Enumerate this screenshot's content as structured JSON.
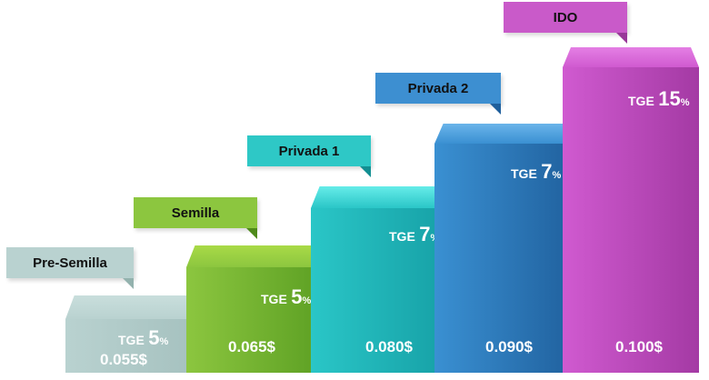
{
  "stages": [
    {
      "name": "Pre-Semilla",
      "tge_label": "TGE",
      "tge_value": "5",
      "tge_unit": "%",
      "price": "0.055$",
      "colors": {
        "top": "#c9dedc",
        "front_a": "#b9d2d0",
        "front_b": "#a3bfbd",
        "tag": "#b9d2d0",
        "tail": "#93b2ae"
      }
    },
    {
      "name": "Semilla",
      "tge_label": "TGE",
      "tge_value": "5",
      "tge_unit": "%",
      "price": "0.065$",
      "colors": {
        "top": "#a9da47",
        "front_a": "#8cc63f",
        "front_b": "#5a9e22",
        "tag": "#8cc63f",
        "tail": "#4f8a1a"
      }
    },
    {
      "name": "Privada 1",
      "tge_label": "TGE",
      "tge_value": "7",
      "tge_unit": "%",
      "price": "0.080$",
      "colors": {
        "top": "#66ece9",
        "front_a": "#2ac6c7",
        "front_b": "#159ea4",
        "tag": "#2ec8c6",
        "tail": "#128f92"
      }
    },
    {
      "name": "Privada 2",
      "tge_label": "TGE",
      "tge_value": "7",
      "tge_unit": "%",
      "price": "0.090$",
      "colors": {
        "top": "#6ab4ea",
        "front_a": "#3a90d2",
        "front_b": "#1f5f9c",
        "tag": "#3d8fd1",
        "tail": "#1f5f9c"
      }
    },
    {
      "name": "IDO",
      "tge_label": "TGE",
      "tge_value": "15",
      "tge_unit": "%",
      "price": "0.100$",
      "colors": {
        "top": "#e47fe4",
        "front_a": "#d05ad0",
        "front_b": "#a43aa4",
        "tag": "#c95ac9",
        "tail": "#983898"
      }
    }
  ]
}
